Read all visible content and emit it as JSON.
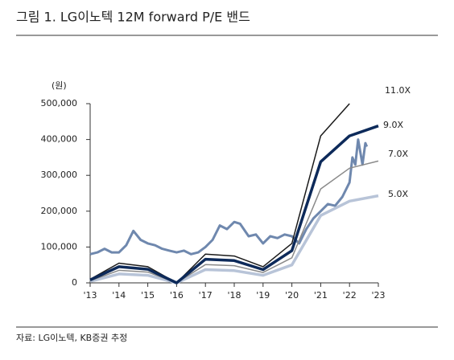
{
  "chart_data": {
    "type": "line",
    "title": "그림 1. LG이노텍 12M forward P/E 밴드",
    "unit": "(원)",
    "source": "자료: LG이노텍, KB증권 추정",
    "xlim": [
      2013,
      2023
    ],
    "xticks": [
      {
        "value": 2013,
        "label": "'13"
      },
      {
        "value": 2014,
        "label": "'14"
      },
      {
        "value": 2015,
        "label": "'15"
      },
      {
        "value": 2016,
        "label": "'16"
      },
      {
        "value": 2017,
        "label": "'17"
      },
      {
        "value": 2018,
        "label": "'18"
      },
      {
        "value": 2019,
        "label": "'19"
      },
      {
        "value": 2020,
        "label": "'20"
      },
      {
        "value": 2021,
        "label": "'21"
      },
      {
        "value": 2022,
        "label": "'22"
      },
      {
        "value": 2023,
        "label": "'23"
      }
    ],
    "ylim": [
      0,
      500000
    ],
    "yticks": [
      {
        "value": 0,
        "label": "0"
      },
      {
        "value": 100000,
        "label": "100,000"
      },
      {
        "value": 200000,
        "label": "200,000"
      },
      {
        "value": 300000,
        "label": "300,000"
      },
      {
        "value": 400000,
        "label": "400,000"
      },
      {
        "value": 500000,
        "label": "500,000"
      }
    ],
    "series": [
      {
        "name": "11.0X",
        "color": "#1a1a1a",
        "width": 1.5,
        "x": [
          2013,
          2014,
          2015,
          2016,
          2017,
          2018,
          2019,
          2020,
          2021,
          2022
        ],
        "values": [
          10000,
          55000,
          45000,
          0,
          80000,
          75000,
          45000,
          110000,
          410000,
          500000
        ]
      },
      {
        "name": "9.0X",
        "color": "#0d2a5a",
        "width": 3.5,
        "x": [
          2013,
          2014,
          2015,
          2016,
          2017,
          2018,
          2019,
          2020,
          2021,
          2022,
          2023
        ],
        "values": [
          8000,
          45000,
          38000,
          0,
          66000,
          62000,
          37000,
          90000,
          338000,
          410000,
          438000
        ]
      },
      {
        "name": "7.0X",
        "color": "#8a8a8a",
        "width": 1.5,
        "x": [
          2013,
          2014,
          2015,
          2016,
          2017,
          2018,
          2019,
          2020,
          2021,
          2022,
          2023
        ],
        "values": [
          6000,
          35000,
          30000,
          0,
          51000,
          48000,
          29000,
          70000,
          262000,
          320000,
          340000
        ]
      },
      {
        "name": "5.0X",
        "color": "#b8c4d8",
        "width": 3.5,
        "x": [
          2013,
          2014,
          2015,
          2016,
          2017,
          2018,
          2019,
          2020,
          2021,
          2022,
          2023
        ],
        "values": [
          4000,
          25000,
          21000,
          0,
          37000,
          34000,
          21000,
          50000,
          188000,
          228000,
          243000
        ]
      },
      {
        "color": "#6f88ae",
        "width": 3,
        "x": [
          2013,
          2013.25,
          2013.5,
          2013.75,
          2014,
          2014.25,
          2014.5,
          2014.75,
          2015,
          2015.25,
          2015.5,
          2015.75,
          2016,
          2016.25,
          2016.5,
          2016.75,
          2017,
          2017.25,
          2017.5,
          2017.75,
          2018,
          2018.2,
          2018.5,
          2018.75,
          2019,
          2019.25,
          2019.5,
          2019.75,
          2020,
          2020.25,
          2020.5,
          2020.75,
          2021,
          2021.25,
          2021.5,
          2021.75,
          2022,
          2022.1,
          2022.2,
          2022.3,
          2022.45,
          2022.55,
          2022.6
        ],
        "values": [
          80000,
          85000,
          95000,
          85000,
          85000,
          105000,
          145000,
          120000,
          110000,
          105000,
          95000,
          90000,
          85000,
          90000,
          80000,
          85000,
          100000,
          120000,
          160000,
          150000,
          170000,
          165000,
          130000,
          135000,
          110000,
          130000,
          125000,
          135000,
          130000,
          110000,
          150000,
          180000,
          200000,
          220000,
          215000,
          240000,
          280000,
          350000,
          330000,
          400000,
          330000,
          390000,
          380000
        ]
      }
    ]
  }
}
